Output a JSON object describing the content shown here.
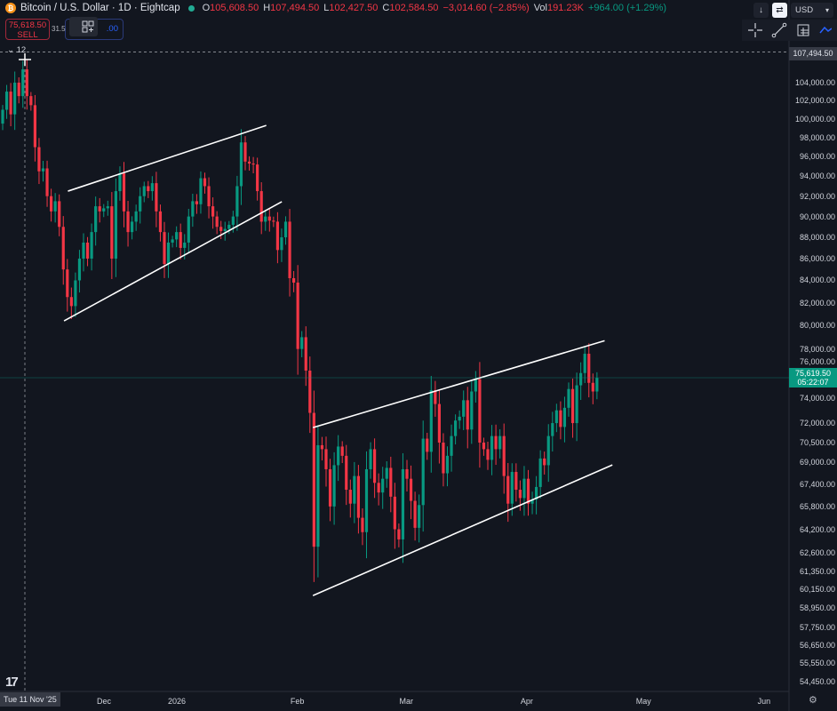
{
  "header": {
    "symbol_title": "Bitcoin / U.S. Dollar · 1D · Eightcap",
    "logo_letter": "₿",
    "ohlc": {
      "o_label": "O",
      "o_value": "105,608.50",
      "h_label": "H",
      "h_value": "107,494.50",
      "l_label": "L",
      "l_value": "102,427.50",
      "c_label": "C",
      "c_value": "102,584.50",
      "change": "−3,014.60 (−2.85%)",
      "vol_label": "Vol",
      "vol_value": "191.23K",
      "vol_change": "+964.00 (+1.29%)"
    }
  },
  "trade": {
    "sell_price": "75,618.50",
    "sell_label": "SELL",
    "spread": "31.5",
    "buy_price_partial": ".00"
  },
  "indicators_collapse": "12",
  "top_right": {
    "currency": "USD"
  },
  "crosshair": {
    "date_label": "Tue 11 Nov '25",
    "price_label": "107,494.50"
  },
  "last_price": {
    "price": "75,619.50",
    "countdown": "05:22:07"
  },
  "colors": {
    "background": "#12161f",
    "up": "#089981",
    "down": "#f23645",
    "trendline": "#ffffff",
    "last_price": "#089981",
    "bitcoin_logo": "#f7931a"
  },
  "chart_data": {
    "type": "candlestick",
    "symbol": "Bitcoin / U.S. Dollar",
    "interval": "1D",
    "y_scale": "log",
    "grid": false,
    "first_open": 99500,
    "close": [
      101000,
      103000,
      100500,
      104000,
      102500,
      105500,
      102500,
      101500,
      97000,
      94500,
      94800,
      92000,
      90500,
      91500,
      89000,
      85000,
      82500,
      81700,
      84000,
      86000,
      87500,
      86000,
      88500,
      91000,
      90500,
      90800,
      91000,
      86000,
      92500,
      94300,
      90500,
      88500,
      89500,
      90500,
      92000,
      93000,
      92500,
      93300,
      90500,
      88500,
      85500,
      87500,
      87800,
      88500,
      87000,
      87500,
      90000,
      91500,
      91200,
      93800,
      93000,
      91000,
      90000,
      89000,
      88600,
      88800,
      89200,
      90000,
      93000,
      97500,
      95500,
      95300,
      95200,
      92500,
      89500,
      90000,
      89600,
      89500,
      86800,
      88000,
      89500,
      84200,
      83800,
      78000,
      79000,
      76200,
      72800,
      63000,
      70300,
      70000,
      68500,
      65800,
      68800,
      70200,
      69500,
      67000,
      66000,
      68000,
      65000,
      64000,
      68500,
      70000,
      67500,
      66800,
      67800,
      68600,
      66500,
      64200,
      63500,
      68500,
      67800,
      66200,
      64300,
      65900,
      70800,
      69800,
      74600,
      73500,
      70500,
      68200,
      69500,
      71000,
      72200,
      72500,
      73800,
      71500,
      74500,
      75500,
      70500,
      70000,
      69200,
      71000,
      70000,
      71000,
      68000,
      66000,
      68300,
      67000,
      66400,
      67800,
      66000,
      66300,
      67200,
      69300,
      68800,
      71000,
      72000,
      73000,
      71700,
      73200,
      74700,
      72000,
      75000,
      76000,
      77600,
      75200,
      74500,
      75600
    ],
    "y_ticks": [
      "104,000.00",
      "102,000.00",
      "100,000.00",
      "98,000.00",
      "96,000.00",
      "94,000.00",
      "92,000.00",
      "90,000.00",
      "88,000.00",
      "86,000.00",
      "84,000.00",
      "82,000.00",
      "80,000.00",
      "78,000.00",
      "76,000.00",
      "74,000.00",
      "72,000.00",
      "70,500.00",
      "69,000.00",
      "67,400.00",
      "65,800.00",
      "64,200.00",
      "62,600.00",
      "61,350.00",
      "60,150.00",
      "58,950.00",
      "57,750.00",
      "56,650.00",
      "55,550.00",
      "54,450.00"
    ],
    "x_ticks": [
      {
        "label": "Dec",
        "date": "2025-12-01"
      },
      {
        "label": "2026",
        "date": "2026-01-01"
      },
      {
        "label": "Feb",
        "date": "2026-02-01"
      },
      {
        "label": "Mar",
        "date": "2026-03-01"
      },
      {
        "label": "Apr",
        "date": "2026-04-01"
      },
      {
        "label": "May",
        "date": "2026-05-01"
      },
      {
        "label": "Jun",
        "date": "2026-06-01"
      }
    ],
    "trendlines": [
      {
        "from": [
          "2025-12-04",
          92500
        ],
        "to": [
          "2026-01-24",
          99300
        ]
      },
      {
        "from": [
          "2025-12-03",
          80400
        ],
        "to": [
          "2026-01-28",
          91450
        ]
      },
      {
        "from": [
          "2026-02-05",
          71650
        ],
        "to": [
          "2026-04-21",
          78700
        ]
      },
      {
        "from": [
          "2026-02-05",
          59760
        ],
        "to": [
          "2026-04-23",
          68820
        ]
      }
    ],
    "last_price": 75619.5,
    "crosshair_price": 107494.5
  }
}
